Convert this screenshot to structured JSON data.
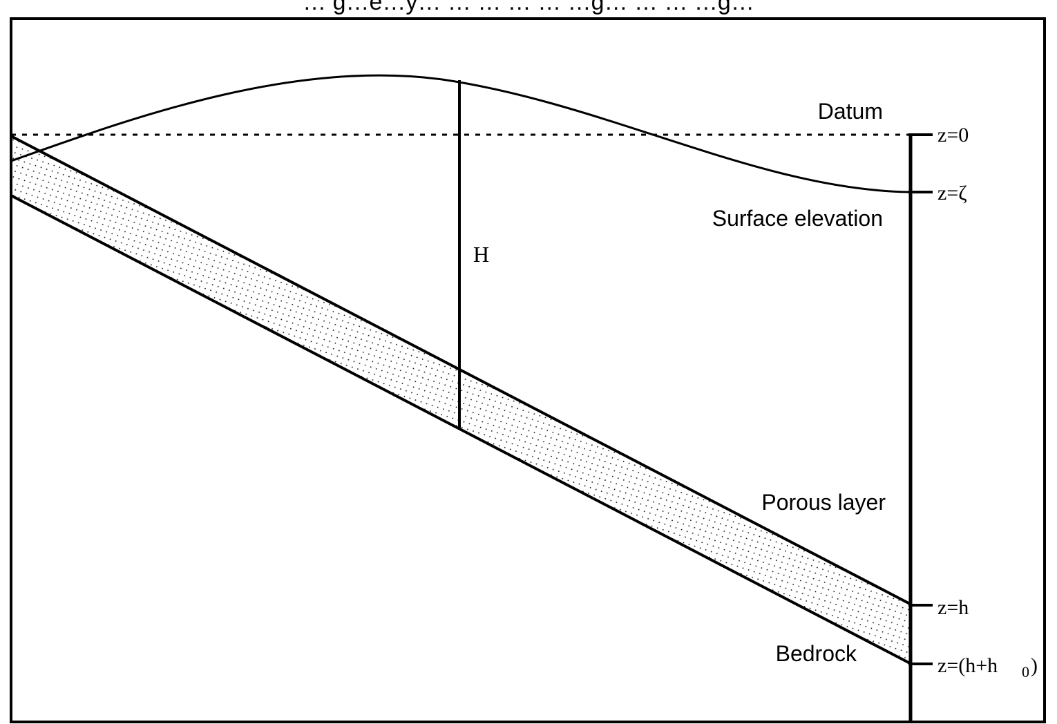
{
  "diagram": {
    "title": "… g…e…y… … … … … …g… … … …g…",
    "labels": {
      "datum": "Datum",
      "surface_elevation": "Surface elevation",
      "porous_layer": "Porous layer",
      "bedrock": "Bedrock",
      "depth_H": "H"
    },
    "levels": {
      "z0": "z=0",
      "z_zeta": "z=ζ",
      "z_h": "z=h",
      "z_h_h0_prefix": "z=(h+h",
      "z_h_h0_subscript": "0",
      "z_h_h0_suffix": ")"
    },
    "colors": {
      "line": "#000000",
      "background": "#ffffff",
      "stipple": "#000000"
    }
  }
}
